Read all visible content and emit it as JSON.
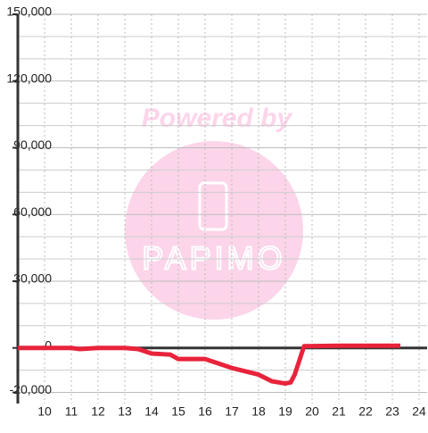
{
  "chart_data": {
    "type": "line",
    "watermark": {
      "text": "Powered by",
      "logo": "PAPIMO"
    },
    "x": [
      9,
      11,
      11.3,
      12,
      13,
      13.5,
      14,
      14.7,
      15,
      16,
      16.5,
      17,
      18,
      18.5,
      19,
      19.2,
      19.35,
      19.7,
      21,
      23.3
    ],
    "series": [
      {
        "color": "#e8233a",
        "values": [
          0,
          0,
          -500,
          0,
          0,
          -500,
          -2500,
          -3000,
          -5000,
          -5000,
          -7000,
          -9000,
          -12000,
          -15000,
          -16000,
          -15500,
          -12000,
          800,
          1000,
          1000
        ]
      }
    ],
    "xlim": [
      9,
      24.3
    ],
    "xticks": [
      10,
      11,
      12,
      13,
      14,
      15,
      16,
      17,
      18,
      19,
      20,
      21,
      22,
      23,
      24
    ],
    "ylim": [
      -25000,
      150000
    ],
    "yticks": [
      {
        "value": -20000,
        "label": "-20,000"
      },
      0,
      {
        "value": 30000,
        "label": "30,000"
      },
      {
        "value": 60000,
        "label": "60,000"
      },
      {
        "value": 90000,
        "label": "90,000"
      },
      {
        "value": 120000,
        "label": "120,000"
      },
      {
        "value": 150000,
        "label": "150,000"
      }
    ],
    "minor_yticks": [
      -20000,
      -10000,
      10000,
      20000,
      40000,
      50000,
      70000,
      80000,
      100000,
      110000,
      130000,
      140000
    ],
    "grid": true
  }
}
